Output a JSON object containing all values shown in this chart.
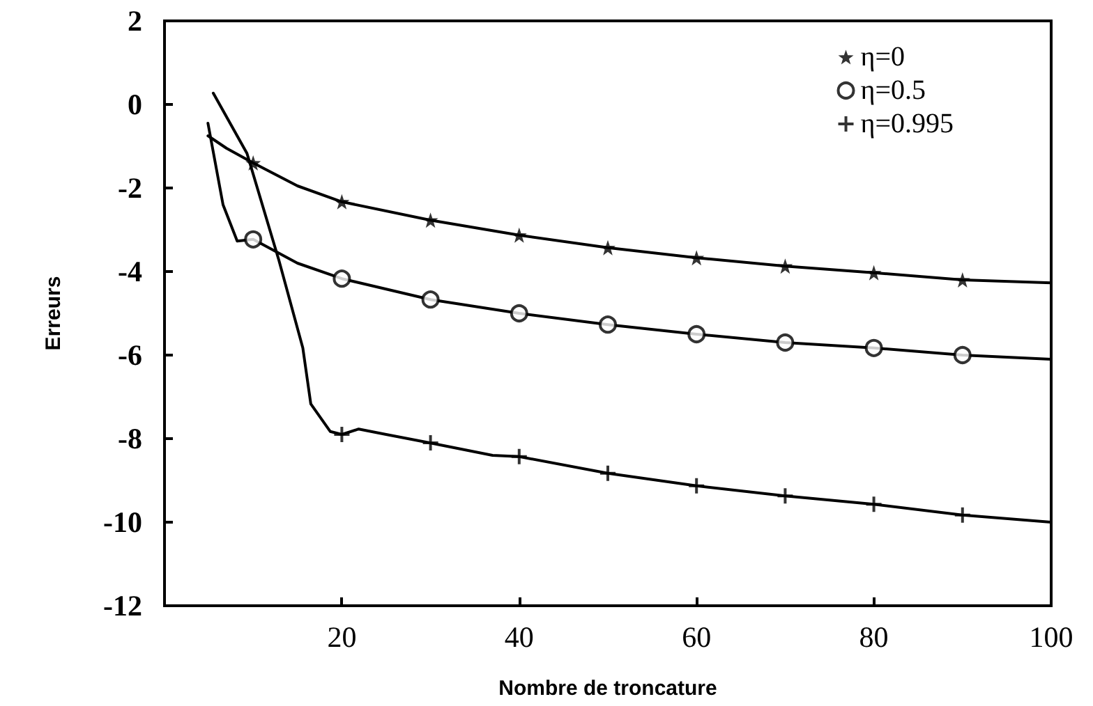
{
  "chart_data": {
    "type": "line",
    "xlabel": "Nombre de troncature",
    "ylabel": "Erreurs",
    "xlim": [
      0,
      100
    ],
    "xticks": [
      20,
      40,
      60,
      80,
      100
    ],
    "ylim": [
      -12,
      2
    ],
    "yticks": [
      -12,
      -10,
      -8,
      -6,
      -4,
      -2,
      0,
      2
    ],
    "grid": false,
    "legend": "top right",
    "series": [
      {
        "type": "line",
        "color": "#000000",
        "marker": "none",
        "line_style": "solid",
        "x": [
          4.9,
          7,
          10,
          15,
          20,
          30,
          40,
          50,
          60,
          70,
          80,
          90,
          100
        ],
        "values": [
          -0.75,
          -1.05,
          -1.4,
          -1.95,
          -2.33,
          -2.77,
          -3.13,
          -3.43,
          -3.67,
          -3.87,
          -4.03,
          -4.2,
          -4.27
        ]
      },
      {
        "type": "line",
        "color": "#000000",
        "marker": "none",
        "line_style": "solid",
        "x": [
          4.9,
          6.6,
          8.2,
          10,
          15,
          20,
          30,
          40,
          50,
          60,
          70,
          80,
          90,
          100
        ],
        "values": [
          -0.45,
          -2.4,
          -3.27,
          -3.23,
          -3.8,
          -4.17,
          -4.67,
          -5.0,
          -5.27,
          -5.5,
          -5.7,
          -5.83,
          -6.0,
          -6.1
        ]
      },
      {
        "type": "line",
        "color": "#000000",
        "marker": "none",
        "line_style": "solid",
        "x": [
          5.5,
          9.3,
          12.9,
          15.6,
          16.5,
          18.7,
          20,
          21.9,
          25,
          29.9,
          37,
          40,
          50,
          60,
          70,
          80,
          90,
          100
        ],
        "values": [
          0.27,
          -1.17,
          -3.73,
          -5.83,
          -7.17,
          -7.83,
          -7.9,
          -7.77,
          -7.9,
          -8.1,
          -8.4,
          -8.43,
          -8.83,
          -9.13,
          -9.37,
          -9.57,
          -9.83,
          -10.0
        ]
      },
      {
        "type": "scatter",
        "name": "η=0",
        "color": "#000000",
        "marker": "star",
        "x": [
          10,
          20,
          30,
          40,
          50,
          60,
          70,
          80,
          90
        ],
        "values": [
          -1.4,
          -2.33,
          -2.77,
          -3.13,
          -3.43,
          -3.67,
          -3.87,
          -4.03,
          -4.2
        ]
      },
      {
        "type": "scatter",
        "name": "η=0.5",
        "color": "#000000",
        "marker": "circle",
        "x": [
          10,
          20,
          30,
          40,
          50,
          60,
          70,
          80,
          90
        ],
        "values": [
          -3.23,
          -4.17,
          -4.67,
          -5.0,
          -5.27,
          -5.5,
          -5.7,
          -5.83,
          -6.0
        ]
      },
      {
        "type": "scatter",
        "name": "η=0.995",
        "color": "#000000",
        "marker": "cross",
        "x": [
          20,
          30,
          40,
          50,
          60,
          70,
          80,
          90
        ],
        "values": [
          -7.9,
          -8.1,
          -8.43,
          -8.83,
          -9.13,
          -9.37,
          -9.57,
          -9.83
        ]
      }
    ]
  }
}
